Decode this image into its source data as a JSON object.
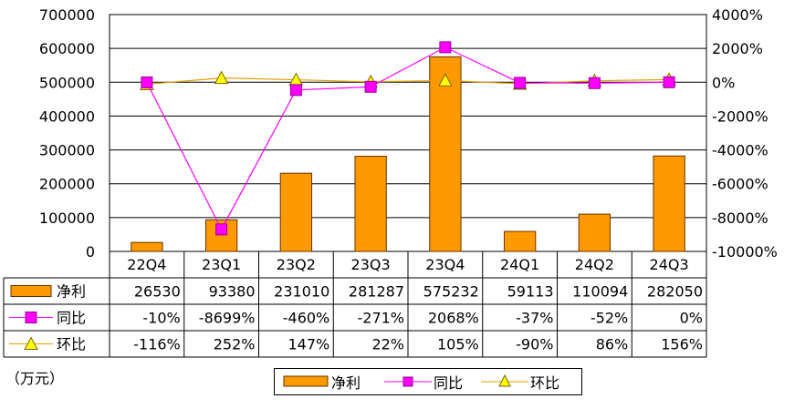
{
  "chart_data": {
    "type": "bar",
    "categories": [
      "22Q4",
      "23Q1",
      "23Q2",
      "23Q3",
      "23Q4",
      "24Q1",
      "24Q2",
      "24Q3"
    ],
    "series": [
      {
        "name": "净利",
        "type": "bar",
        "axis": "left",
        "values": [
          26530,
          93380,
          231010,
          281287,
          575232,
          59113,
          110094,
          282050
        ],
        "labels": [
          "26530",
          "93380",
          "231010",
          "281287",
          "575232",
          "59113",
          "110094",
          "282050"
        ]
      },
      {
        "name": "同比",
        "type": "line",
        "axis": "right",
        "values": [
          -10,
          -8699,
          -460,
          -271,
          2068,
          -37,
          -52,
          0
        ],
        "labels": [
          "-10%",
          "-8699%",
          "-460%",
          "-271%",
          "2068%",
          "-37%",
          "-52%",
          "0%"
        ]
      },
      {
        "name": "环比",
        "type": "line",
        "axis": "right",
        "values": [
          -116,
          252,
          147,
          22,
          105,
          -90,
          86,
          156
        ],
        "labels": [
          "-116%",
          "252%",
          "147%",
          "22%",
          "105%",
          "-90%",
          "86%",
          "156%"
        ]
      }
    ],
    "left_axis": {
      "ylim": [
        0,
        700000
      ],
      "ticks": [
        "700000",
        "600000",
        "500000",
        "400000",
        "300000",
        "200000",
        "100000",
        "0"
      ]
    },
    "right_axis": {
      "ylim": [
        -10000,
        4000
      ],
      "ticks": [
        "4000%",
        "2000%",
        "0%",
        "-2000%",
        "-4000%",
        "-6000%",
        "-8000%",
        "-10000%"
      ]
    },
    "grid": true,
    "legend_position": "bottom-center",
    "unit_note": "（万元）",
    "colors": {
      "bar": "#FF9900",
      "bar_edge": "#663300",
      "yoy": "#FF00FF",
      "qoq_line": "#E0A000",
      "qoq_marker": "#FFFF00"
    }
  }
}
